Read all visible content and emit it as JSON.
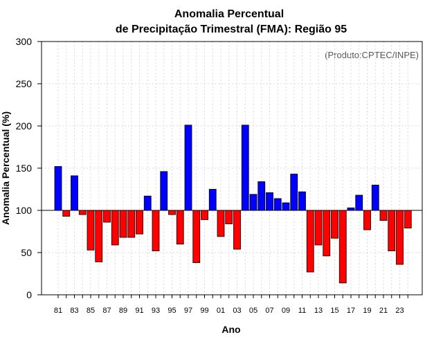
{
  "chart_data": {
    "type": "bar",
    "title": "Anomalia Percentual",
    "subtitle": "de Precipitação Trimestral (FMA): Região 95",
    "xlabel": "Ano",
    "ylabel": "Anomalia Percentual (%)",
    "credit": "(Produto:CPTEC/INPE)",
    "ylim": [
      0,
      300
    ],
    "yticks": [
      0,
      50,
      100,
      150,
      200,
      250,
      300
    ],
    "baseline": 100,
    "grid": true,
    "colors": {
      "above": "#0000ff",
      "below": "#ff0000",
      "edge": "#000000"
    },
    "categories": [
      "81",
      "82",
      "83",
      "84",
      "85",
      "86",
      "87",
      "88",
      "89",
      "90",
      "91",
      "92",
      "93",
      "94",
      "95",
      "96",
      "97",
      "98",
      "99",
      "00",
      "01",
      "02",
      "03",
      "04",
      "05",
      "06",
      "07",
      "08",
      "09",
      "10",
      "11",
      "12",
      "13",
      "14",
      "15",
      "16",
      "17",
      "18",
      "19",
      "20",
      "21",
      "22",
      "23",
      "24"
    ],
    "xtick_labels": [
      "81",
      "83",
      "85",
      "87",
      "89",
      "91",
      "93",
      "95",
      "97",
      "99",
      "01",
      "03",
      "05",
      "07",
      "09",
      "11",
      "13",
      "15",
      "17",
      "19",
      "21",
      "23"
    ],
    "values": [
      152,
      93,
      141,
      95,
      53,
      39,
      86,
      59,
      68,
      68,
      72,
      117,
      52,
      146,
      95,
      60,
      201,
      38,
      89,
      125,
      69,
      84,
      54,
      201,
      119,
      134,
      121,
      114,
      109,
      143,
      122,
      27,
      59,
      46,
      67,
      14,
      103,
      118,
      77,
      130,
      88,
      52,
      36,
      79
    ]
  }
}
